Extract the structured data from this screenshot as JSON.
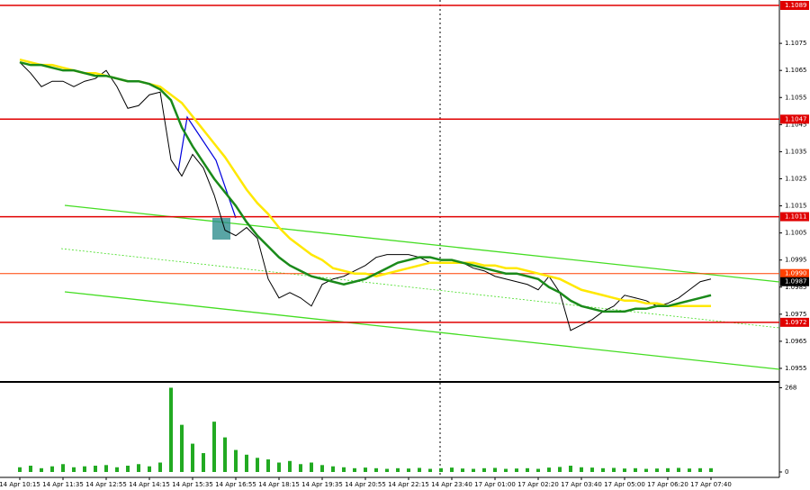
{
  "chart_data": [
    {
      "type": "line",
      "categories": [
        "14 Apr 10:15",
        null,
        null,
        null,
        "14 Apr 11:35",
        null,
        null,
        null,
        "14 Apr 12:55",
        null,
        null,
        null,
        "14 Apr 14:15",
        null,
        null,
        null,
        "14 Apr 15:35",
        null,
        null,
        null,
        "14 Apr 16:55",
        null,
        null,
        null,
        "14 Apr 18:15",
        null,
        null,
        null,
        "14 Apr 19:35",
        null,
        null,
        null,
        "14 Apr 20:55",
        null,
        null,
        null,
        "14 Apr 22:15",
        null,
        null,
        null,
        "14 Apr 23:40",
        null,
        null,
        null,
        "17 Apr 01:00",
        null,
        null,
        null,
        "17 Apr 02:20",
        null,
        null,
        null,
        "17 Apr 03:40",
        null,
        null,
        null,
        "17 Apr 05:00",
        null,
        null,
        null,
        "17 Apr 06:20",
        null,
        null,
        null,
        "17 Apr 07:40"
      ],
      "series": [
        {
          "color": "#000000",
          "values": [
            1.1068,
            1.1064,
            1.1059,
            1.1061,
            1.1061,
            1.1059,
            1.1061,
            1.1062,
            1.1065,
            1.1059,
            1.1051,
            1.1052,
            1.1056,
            1.1057,
            1.1032,
            1.1026,
            1.1034,
            1.1029,
            1.1019,
            1.1006,
            1.1004,
            1.1007,
            1.1003,
            1.0988,
            1.0981,
            1.0983,
            1.0981,
            1.0978,
            1.0986,
            1.0988,
            1.0989,
            1.0991,
            1.0993,
            1.0996,
            1.0997,
            1.0997,
            1.0997,
            1.0996,
            1.0994,
            1.0994,
            1.0994,
            1.0994,
            1.0992,
            1.0991,
            1.0989,
            1.0988,
            1.0987,
            1.0986,
            1.0984,
            1.0989,
            1.0983,
            1.0969,
            1.0971,
            1.0973,
            1.0976,
            1.0978,
            1.0982,
            1.0981,
            1.098,
            1.0978,
            1.0979,
            1.0981,
            1.0984,
            1.0987,
            1.0988
          ]
        },
        {
          "color": "#ffe800",
          "values": [
            1.1069,
            1.1068,
            1.1067,
            1.1067,
            1.1066,
            1.1065,
            1.1064,
            1.1064,
            1.1063,
            1.1062,
            1.1061,
            1.1061,
            1.106,
            1.1059,
            1.1056,
            1.1053,
            1.1048,
            1.1043,
            1.1038,
            1.1033,
            1.1027,
            1.1021,
            1.1016,
            1.1012,
            1.1007,
            1.1003,
            1.1,
            1.0997,
            1.0995,
            1.0992,
            1.0991,
            1.099,
            1.099,
            1.0989,
            1.099,
            1.0991,
            1.0992,
            1.0993,
            1.0994,
            1.0994,
            1.0994,
            1.0994,
            1.0994,
            1.0993,
            1.0993,
            1.0992,
            1.0992,
            1.0991,
            1.099,
            1.0989,
            1.0988,
            1.0986,
            1.0984,
            1.0983,
            1.0982,
            1.0981,
            1.098,
            1.098,
            1.0979,
            1.0979,
            1.0978,
            1.0978,
            1.0978,
            1.0978,
            1.0978
          ]
        },
        {
          "color": "#1a8a1a",
          "values": [
            1.1068,
            1.1067,
            1.1067,
            1.1066,
            1.1065,
            1.1065,
            1.1064,
            1.1063,
            1.1063,
            1.1062,
            1.1061,
            1.1061,
            1.106,
            1.1058,
            1.1054,
            1.1044,
            1.1037,
            1.1031,
            1.1025,
            1.102,
            1.1015,
            1.1009,
            1.1004,
            1.1,
            1.0996,
            1.0993,
            1.0991,
            1.0989,
            1.0988,
            1.0987,
            1.0986,
            1.0987,
            1.0988,
            1.099,
            1.0992,
            1.0994,
            1.0995,
            1.0996,
            1.0996,
            1.0995,
            1.0995,
            1.0994,
            1.0993,
            1.0992,
            1.0991,
            1.099,
            1.099,
            1.0989,
            1.0988,
            1.0985,
            1.0983,
            1.098,
            1.0978,
            1.0977,
            1.0976,
            1.0976,
            1.0976,
            1.0977,
            1.0977,
            1.0978,
            1.0978,
            1.0979,
            1.098,
            1.0981,
            1.0982
          ]
        }
      ],
      "ylim": [
        1.095,
        1.1091
      ],
      "yticks": [
        1.1075,
        1.1065,
        1.1055,
        1.1045,
        1.1035,
        1.1025,
        1.1015,
        1.1005,
        1.0995,
        1.0985,
        1.0975,
        1.0965,
        1.0955
      ],
      "levels": [
        {
          "value": 1.1089,
          "label": "1.1089",
          "color": "#e00000"
        },
        {
          "value": 1.1047,
          "label": "1.1047",
          "color": "#e00000"
        },
        {
          "value": 1.1011,
          "label": "1.1011",
          "color": "#e00000"
        },
        {
          "value": 1.099,
          "label": "1.0990",
          "color": "#ff4000"
        },
        {
          "value": 1.0972,
          "label": "1.0972",
          "color": "#e00000"
        }
      ],
      "current_price": {
        "value": 1.0987,
        "label": "1.0987"
      }
    },
    {
      "type": "bar",
      "color": "#22aa22",
      "values": [
        15,
        20,
        12,
        18,
        25,
        15,
        18,
        20,
        22,
        15,
        20,
        25,
        18,
        30,
        268,
        150,
        90,
        60,
        160,
        110,
        70,
        55,
        45,
        40,
        30,
        35,
        25,
        30,
        22,
        18,
        15,
        12,
        14,
        12,
        10,
        12,
        11,
        13,
        10,
        12,
        14,
        11,
        10,
        12,
        13,
        10,
        11,
        12,
        10,
        14,
        16,
        20,
        15,
        14,
        12,
        13,
        11,
        12,
        10,
        11,
        12,
        13,
        11,
        12,
        12
      ],
      "ylim": [
        0,
        275
      ],
      "yticks": [
        0,
        268
      ]
    }
  ]
}
